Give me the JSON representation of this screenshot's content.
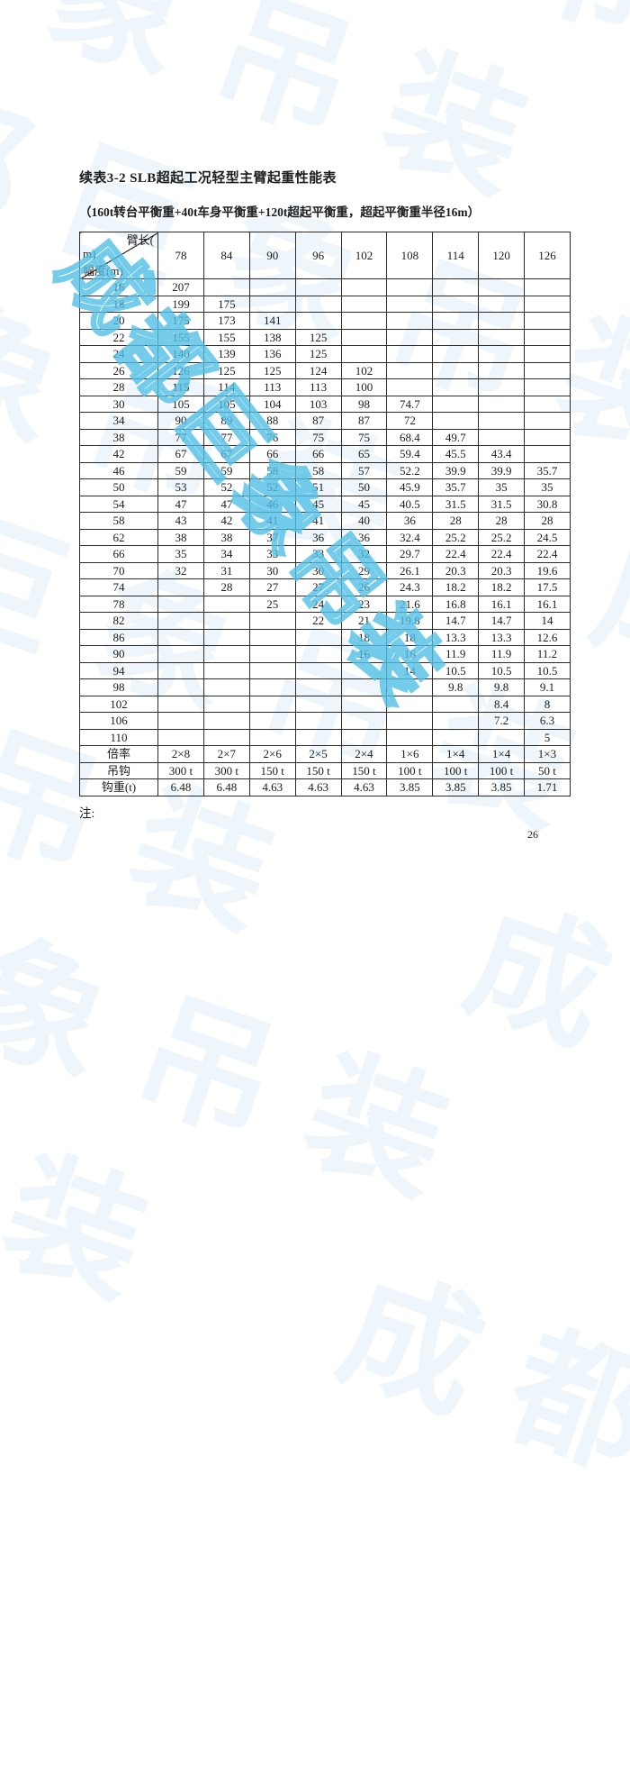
{
  "document": {
    "title": "续表3-2 SLB超起工况轻型主臂起重性能表",
    "subtitle": "（160t转台平衡重+40t车身平衡重+120t超起平衡重，超起平衡重半径16m）",
    "note_label": "注:",
    "page_number": "26"
  },
  "watermark": {
    "text": "成都巨象吊装",
    "tile_color": "rgba(150,200,238,0.16)",
    "accent_color": "#50bee4"
  },
  "colors": {
    "text": "#1c1c1c",
    "border": "#2b2b2b",
    "page_bg": "#ffffff"
  },
  "table": {
    "corner": {
      "axis_top_part1": "臂长(",
      "axis_top_part2": "m)",
      "axis_bottom": "幅度(m)"
    },
    "boom_lengths": [
      "78",
      "84",
      "90",
      "96",
      "102",
      "108",
      "114",
      "120",
      "126"
    ],
    "rows": [
      {
        "radius": "16",
        "values": [
          "207",
          "",
          "",
          "",
          "",
          "",
          "",
          "",
          ""
        ]
      },
      {
        "radius": "18",
        "values": [
          "199",
          "175",
          "",
          "",
          "",
          "",
          "",
          "",
          ""
        ]
      },
      {
        "radius": "20",
        "values": [
          "175",
          "173",
          "141",
          "",
          "",
          "",
          "",
          "",
          ""
        ]
      },
      {
        "radius": "22",
        "values": [
          "155",
          "155",
          "138",
          "125",
          "",
          "",
          "",
          "",
          ""
        ]
      },
      {
        "radius": "24",
        "values": [
          "140",
          "139",
          "136",
          "125",
          "",
          "",
          "",
          "",
          ""
        ]
      },
      {
        "radius": "26",
        "values": [
          "126",
          "125",
          "125",
          "124",
          "102",
          "",
          "",
          "",
          ""
        ]
      },
      {
        "radius": "28",
        "values": [
          "115",
          "114",
          "113",
          "113",
          "100",
          "",
          "",
          "",
          ""
        ]
      },
      {
        "radius": "30",
        "values": [
          "105",
          "105",
          "104",
          "103",
          "98",
          "74.7",
          "",
          "",
          ""
        ]
      },
      {
        "radius": "34",
        "values": [
          "90",
          "89",
          "88",
          "87",
          "87",
          "72",
          "",
          "",
          ""
        ]
      },
      {
        "radius": "38",
        "values": [
          "77",
          "77",
          "76",
          "75",
          "75",
          "68.4",
          "49.7",
          "",
          ""
        ]
      },
      {
        "radius": "42",
        "values": [
          "67",
          "67",
          "66",
          "66",
          "65",
          "59.4",
          "45.5",
          "43.4",
          ""
        ]
      },
      {
        "radius": "46",
        "values": [
          "59",
          "59",
          "58",
          "58",
          "57",
          "52.2",
          "39.9",
          "39.9",
          "35.7"
        ]
      },
      {
        "radius": "50",
        "values": [
          "53",
          "52",
          "52",
          "51",
          "50",
          "45.9",
          "35.7",
          "35",
          "35"
        ]
      },
      {
        "radius": "54",
        "values": [
          "47",
          "47",
          "46",
          "45",
          "45",
          "40.5",
          "31.5",
          "31.5",
          "30.8"
        ]
      },
      {
        "radius": "58",
        "values": [
          "43",
          "42",
          "41",
          "41",
          "40",
          "36",
          "28",
          "28",
          "28"
        ]
      },
      {
        "radius": "62",
        "values": [
          "38",
          "38",
          "37",
          "36",
          "36",
          "32.4",
          "25.2",
          "25.2",
          "24.5"
        ]
      },
      {
        "radius": "66",
        "values": [
          "35",
          "34",
          "33",
          "33",
          "32",
          "29.7",
          "22.4",
          "22.4",
          "22.4"
        ]
      },
      {
        "radius": "70",
        "values": [
          "32",
          "31",
          "30",
          "30",
          "29",
          "26.1",
          "20.3",
          "20.3",
          "19.6"
        ]
      },
      {
        "radius": "74",
        "values": [
          "",
          "28",
          "27",
          "27",
          "26",
          "24.3",
          "18.2",
          "18.2",
          "17.5"
        ]
      },
      {
        "radius": "78",
        "values": [
          "",
          "",
          "25",
          "24",
          "23",
          "21.6",
          "16.8",
          "16.1",
          "16.1"
        ]
      },
      {
        "radius": "82",
        "values": [
          "",
          "",
          "",
          "22",
          "21",
          "19.8",
          "14.7",
          "14.7",
          "14"
        ]
      },
      {
        "radius": "86",
        "values": [
          "",
          "",
          "",
          "",
          "18",
          "18",
          "13.3",
          "13.3",
          "12.6"
        ]
      },
      {
        "radius": "90",
        "values": [
          "",
          "",
          "",
          "",
          "16",
          "16",
          "11.9",
          "11.9",
          "11.2"
        ]
      },
      {
        "radius": "94",
        "values": [
          "",
          "",
          "",
          "",
          "",
          "14",
          "10.5",
          "10.5",
          "10.5"
        ]
      },
      {
        "radius": "98",
        "values": [
          "",
          "",
          "",
          "",
          "",
          "",
          "9.8",
          "9.8",
          "9.1"
        ]
      },
      {
        "radius": "102",
        "values": [
          "",
          "",
          "",
          "",
          "",
          "",
          "",
          "8.4",
          "8"
        ]
      },
      {
        "radius": "106",
        "values": [
          "",
          "",
          "",
          "",
          "",
          "",
          "",
          "7.2",
          "6.3"
        ]
      },
      {
        "radius": "110",
        "values": [
          "",
          "",
          "",
          "",
          "",
          "",
          "",
          "",
          "5"
        ]
      }
    ],
    "footer_rows": [
      {
        "label": "倍率",
        "values": [
          "2×8",
          "2×7",
          "2×6",
          "2×5",
          "2×4",
          "1×6",
          "1×4",
          "1×4",
          "1×3"
        ]
      },
      {
        "label": "吊钩",
        "values": [
          "300 t",
          "300 t",
          "150 t",
          "150 t",
          "150 t",
          "100 t",
          "100 t",
          "100 t",
          "50 t"
        ]
      },
      {
        "label": "钩重(t)",
        "values": [
          "6.48",
          "6.48",
          "4.63",
          "4.63",
          "4.63",
          "3.85",
          "3.85",
          "3.85",
          "1.71"
        ]
      }
    ]
  }
}
